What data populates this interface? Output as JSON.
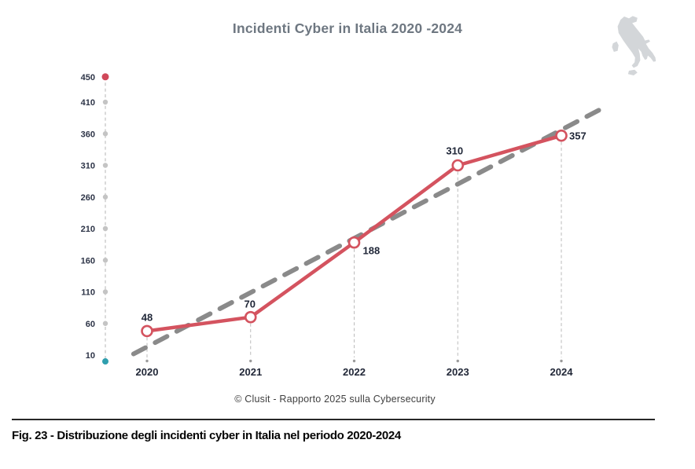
{
  "title": "Incidenti Cyber in Italia 2020 -2024",
  "source_caption": "© Clusit - Rapporto 2025 sulla Cybersecurity",
  "figure_caption": {
    "label": "Fig. 23 -",
    "text": " Distribuzione degli incidenti cyber in Italia nel periodo 2020-2024"
  },
  "icons": {
    "italy_map": "italy-map-silhouette"
  },
  "colors": {
    "series_red": "#d4535f",
    "trend_gray": "#8a8a8a",
    "axis_dash": "#c7c7c7",
    "axis_tick_dot": "#c4c4c4",
    "axis_top_dot_red": "#d0485a",
    "axis_bottom_dot_teal": "#2f9fae",
    "drop_line": "#bbbbbb",
    "drop_dot": "#9a9a9a",
    "tick_label": "#2d3447",
    "data_label": "#1f2637",
    "x_label": "#222838",
    "title_gray": "#6e7781",
    "italy_fill": "#d3d6d9"
  },
  "chart_data": {
    "type": "line",
    "title": "Incidenti Cyber in Italia 2020 -2024",
    "categories": [
      "2020",
      "2021",
      "2022",
      "2023",
      "2024"
    ],
    "series": [
      {
        "name": "Incidenti cyber in Italia",
        "values": [
          48,
          70,
          188,
          310,
          357
        ]
      }
    ],
    "data_labels": [
      "48",
      "70",
      "188",
      "310",
      "357"
    ],
    "y_ticks": [
      10,
      60,
      110,
      160,
      210,
      260,
      310,
      360,
      410,
      450
    ],
    "ylim": [
      0,
      450
    ],
    "xlabel": "",
    "ylabel": "",
    "grid": false,
    "legend": "none",
    "trendline": {
      "type": "linear",
      "style": "dashed-gray"
    }
  }
}
